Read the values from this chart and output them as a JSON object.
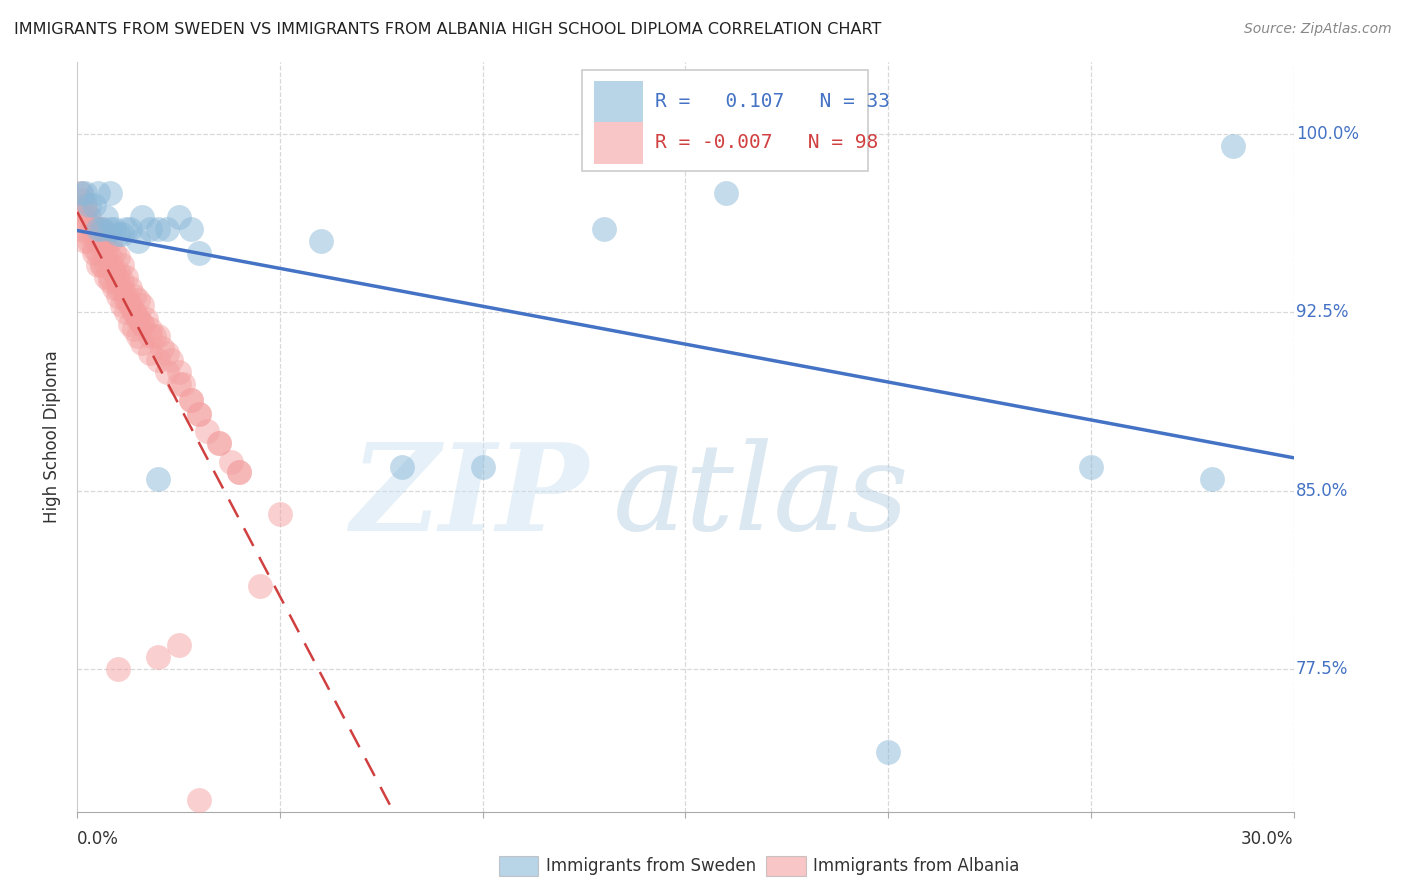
{
  "title": "IMMIGRANTS FROM SWEDEN VS IMMIGRANTS FROM ALBANIA HIGH SCHOOL DIPLOMA CORRELATION CHART",
  "source": "Source: ZipAtlas.com",
  "ylabel": "High School Diploma",
  "ytick_labels": [
    "100.0%",
    "92.5%",
    "85.0%",
    "77.5%"
  ],
  "ytick_values": [
    1.0,
    0.925,
    0.85,
    0.775
  ],
  "xlim": [
    0.0,
    0.3
  ],
  "ylim": [
    0.715,
    1.03
  ],
  "sweden_color": "#8ab8d8",
  "albania_color": "#f4a0a0",
  "sweden_line_color": "#4472c4",
  "albania_line_color": "#d04040",
  "background_color": "#ffffff",
  "grid_color": "#d8d8d8",
  "sweden_x": [
    0.001,
    0.002,
    0.003,
    0.004,
    0.005,
    0.006,
    0.007,
    0.008,
    0.009,
    0.01,
    0.011,
    0.012,
    0.013,
    0.015,
    0.016,
    0.018,
    0.02,
    0.022,
    0.025,
    0.028,
    0.03,
    0.06,
    0.08,
    0.1,
    0.13,
    0.16,
    0.2,
    0.25,
    0.28,
    0.285,
    0.005,
    0.008,
    0.02
  ],
  "sweden_y": [
    0.975,
    0.975,
    0.97,
    0.97,
    0.975,
    0.96,
    0.965,
    0.975,
    0.96,
    0.958,
    0.958,
    0.96,
    0.96,
    0.955,
    0.965,
    0.96,
    0.96,
    0.96,
    0.965,
    0.96,
    0.95,
    0.955,
    0.86,
    0.86,
    0.96,
    0.975,
    0.74,
    0.86,
    0.855,
    0.995,
    0.96,
    0.96,
    0.855
  ],
  "albania_x": [
    0.001,
    0.001,
    0.002,
    0.002,
    0.003,
    0.003,
    0.004,
    0.004,
    0.005,
    0.005,
    0.005,
    0.006,
    0.006,
    0.006,
    0.007,
    0.007,
    0.007,
    0.008,
    0.008,
    0.008,
    0.009,
    0.009,
    0.01,
    0.01,
    0.01,
    0.011,
    0.011,
    0.012,
    0.012,
    0.013,
    0.013,
    0.014,
    0.014,
    0.015,
    0.015,
    0.016,
    0.016,
    0.017,
    0.018,
    0.019,
    0.02,
    0.021,
    0.022,
    0.023,
    0.025,
    0.026,
    0.028,
    0.03,
    0.032,
    0.035,
    0.038,
    0.04,
    0.05,
    0.002,
    0.003,
    0.004,
    0.005,
    0.006,
    0.007,
    0.008,
    0.009,
    0.01,
    0.011,
    0.012,
    0.013,
    0.014,
    0.015,
    0.016,
    0.018,
    0.02,
    0.022,
    0.025,
    0.028,
    0.03,
    0.035,
    0.001,
    0.002,
    0.003,
    0.004,
    0.005,
    0.006,
    0.007,
    0.008,
    0.009,
    0.01,
    0.011,
    0.012,
    0.013,
    0.014,
    0.015,
    0.016,
    0.018,
    0.03,
    0.045,
    0.025,
    0.02,
    0.01,
    0.04
  ],
  "albania_y": [
    0.975,
    0.96,
    0.97,
    0.955,
    0.965,
    0.955,
    0.96,
    0.95,
    0.96,
    0.955,
    0.945,
    0.96,
    0.955,
    0.945,
    0.958,
    0.952,
    0.945,
    0.955,
    0.948,
    0.94,
    0.95,
    0.942,
    0.948,
    0.942,
    0.935,
    0.945,
    0.938,
    0.94,
    0.932,
    0.935,
    0.928,
    0.932,
    0.925,
    0.93,
    0.922,
    0.928,
    0.92,
    0.922,
    0.918,
    0.915,
    0.915,
    0.91,
    0.908,
    0.905,
    0.9,
    0.895,
    0.888,
    0.882,
    0.875,
    0.87,
    0.862,
    0.858,
    0.84,
    0.965,
    0.958,
    0.952,
    0.95,
    0.945,
    0.94,
    0.938,
    0.935,
    0.932,
    0.928,
    0.925,
    0.92,
    0.918,
    0.915,
    0.912,
    0.908,
    0.905,
    0.9,
    0.895,
    0.888,
    0.882,
    0.87,
    0.972,
    0.968,
    0.962,
    0.958,
    0.955,
    0.952,
    0.948,
    0.945,
    0.942,
    0.938,
    0.935,
    0.93,
    0.928,
    0.925,
    0.922,
    0.92,
    0.915,
    0.72,
    0.81,
    0.785,
    0.78,
    0.775,
    0.858
  ]
}
